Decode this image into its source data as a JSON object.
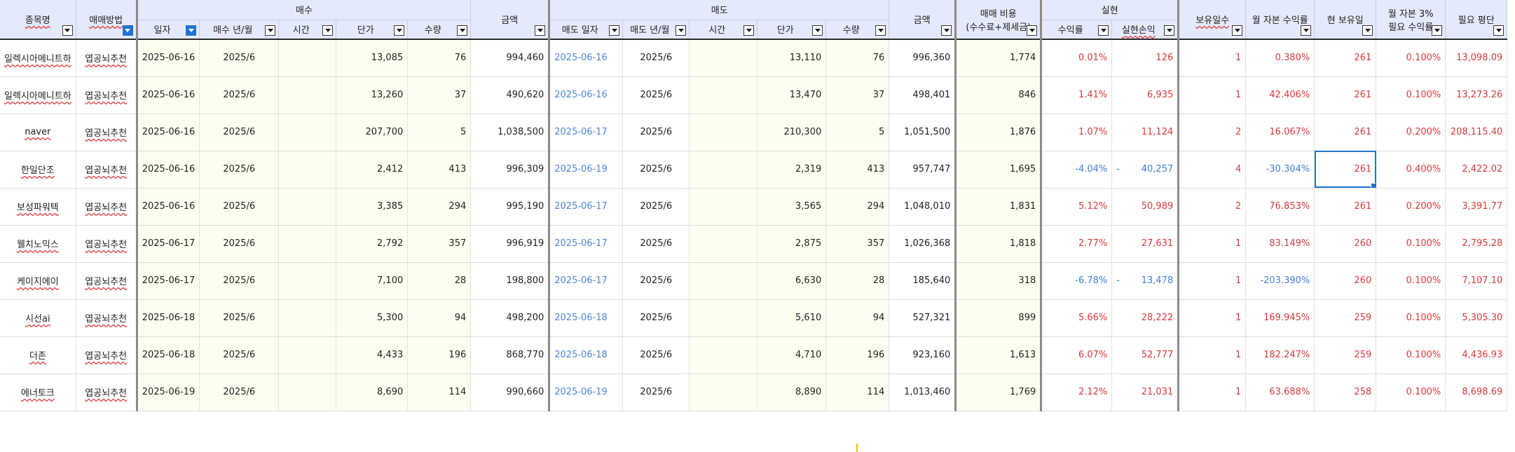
{
  "header": {
    "group_buy": "매수",
    "group_sell": "매도",
    "group_realized": "실현",
    "cols": {
      "stock_name": "종목명",
      "trade_method": "매매방법",
      "buy_date": "일자",
      "buy_ym": "매수 년/월",
      "buy_time": "시간",
      "buy_price": "단가",
      "buy_qty": "수량",
      "buy_amount": "금액",
      "sell_date": "매도 일자",
      "sell_ym": "매도 년/월",
      "sell_time": "시간",
      "sell_price": "단가",
      "sell_qty": "수량",
      "sell_amount": "금액",
      "cost_line1": "매매 비용",
      "cost_line2": "(수수료+제세금)",
      "return_rate": "수익률",
      "realized_pl": "실현손익",
      "holding_days": "보유일수",
      "monthly_return": "월 자본 수익률",
      "current_holding": "현 보유일",
      "req_line1": "월 자본 3%",
      "req_line2": "필요 수익률",
      "req_avg": "필요 평단"
    }
  },
  "rows": [
    {
      "name": "일렉시아메니트하",
      "method": "엽공뇌추천",
      "buy_date": "2025-06-16",
      "buy_ym": "2025/6",
      "buy_time": "",
      "buy_price": "13,085",
      "buy_qty": "76",
      "buy_amount": "994,460",
      "sell_date": "2025-06-16",
      "sell_ym": "2025/6",
      "sell_time": "",
      "sell_price": "13,110",
      "sell_qty": "76",
      "sell_amount": "996,360",
      "cost": "1,774",
      "rate": "0.01%",
      "pl_dash": "",
      "pl": "126",
      "days": "1",
      "monthly": "0.380%",
      "cur": "261",
      "req_rate": "0.100%",
      "req_avg": "13,098.09",
      "tone": "red"
    },
    {
      "name": "일렉시아메니트하",
      "method": "엽공뇌추천",
      "buy_date": "2025-06-16",
      "buy_ym": "2025/6",
      "buy_time": "",
      "buy_price": "13,260",
      "buy_qty": "37",
      "buy_amount": "490,620",
      "sell_date": "2025-06-16",
      "sell_ym": "2025/6",
      "sell_time": "",
      "sell_price": "13,470",
      "sell_qty": "37",
      "sell_amount": "498,401",
      "cost": "846",
      "rate": "1.41%",
      "pl_dash": "",
      "pl": "6,935",
      "days": "1",
      "monthly": "42.406%",
      "cur": "261",
      "req_rate": "0.100%",
      "req_avg": "13,273.26",
      "tone": "red"
    },
    {
      "name": "naver",
      "method": "엽공뇌추천",
      "buy_date": "2025-06-16",
      "buy_ym": "2025/6",
      "buy_time": "",
      "buy_price": "207,700",
      "buy_qty": "5",
      "buy_amount": "1,038,500",
      "sell_date": "2025-06-17",
      "sell_ym": "2025/6",
      "sell_time": "",
      "sell_price": "210,300",
      "sell_qty": "5",
      "sell_amount": "1,051,500",
      "cost": "1,876",
      "rate": "1.07%",
      "pl_dash": "",
      "pl": "11,124",
      "days": "2",
      "monthly": "16.067%",
      "cur": "261",
      "req_rate": "0.200%",
      "req_avg": "208,115.40",
      "tone": "red"
    },
    {
      "name": "한일단조",
      "method": "엽공뇌추천",
      "buy_date": "2025-06-16",
      "buy_ym": "2025/6",
      "buy_time": "",
      "buy_price": "2,412",
      "buy_qty": "413",
      "buy_amount": "996,309",
      "sell_date": "2025-06-19",
      "sell_ym": "2025/6",
      "sell_time": "",
      "sell_price": "2,319",
      "sell_qty": "413",
      "sell_amount": "957,747",
      "cost": "1,695",
      "rate": "-4.04%",
      "pl_dash": "-",
      "pl": "40,257",
      "days": "4",
      "monthly": "-30.304%",
      "cur": "261",
      "req_rate": "0.400%",
      "req_avg": "2,422.02",
      "tone": "blue"
    },
    {
      "name": "보성파워텍",
      "method": "엽공뇌추천",
      "buy_date": "2025-06-16",
      "buy_ym": "2025/6",
      "buy_time": "",
      "buy_price": "3,385",
      "buy_qty": "294",
      "buy_amount": "995,190",
      "sell_date": "2025-06-17",
      "sell_ym": "2025/6",
      "sell_time": "",
      "sell_price": "3,565",
      "sell_qty": "294",
      "sell_amount": "1,048,010",
      "cost": "1,831",
      "rate": "5.12%",
      "pl_dash": "",
      "pl": "50,989",
      "days": "2",
      "monthly": "76.853%",
      "cur": "261",
      "req_rate": "0.200%",
      "req_avg": "3,391.77",
      "tone": "red"
    },
    {
      "name": "웰치노믹스",
      "method": "엽공뇌추천",
      "buy_date": "2025-06-17",
      "buy_ym": "2025/6",
      "buy_time": "",
      "buy_price": "2,792",
      "buy_qty": "357",
      "buy_amount": "996,919",
      "sell_date": "2025-06-17",
      "sell_ym": "2025/6",
      "sell_time": "",
      "sell_price": "2,875",
      "sell_qty": "357",
      "sell_amount": "1,026,368",
      "cost": "1,818",
      "rate": "2.77%",
      "pl_dash": "",
      "pl": "27,631",
      "days": "1",
      "monthly": "83.149%",
      "cur": "260",
      "req_rate": "0.100%",
      "req_avg": "2,795.28",
      "tone": "red"
    },
    {
      "name": "케이지에이",
      "method": "엽공뇌추천",
      "buy_date": "2025-06-17",
      "buy_ym": "2025/6",
      "buy_time": "",
      "buy_price": "7,100",
      "buy_qty": "28",
      "buy_amount": "198,800",
      "sell_date": "2025-06-17",
      "sell_ym": "2025/6",
      "sell_time": "",
      "sell_price": "6,630",
      "sell_qty": "28",
      "sell_amount": "185,640",
      "cost": "318",
      "rate": "-6.78%",
      "pl_dash": "-",
      "pl": "13,478",
      "days": "1",
      "monthly": "-203.390%",
      "cur": "260",
      "req_rate": "0.100%",
      "req_avg": "7,107.10",
      "tone": "blue"
    },
    {
      "name": "시선ai",
      "method": "엽공뇌추천",
      "buy_date": "2025-06-18",
      "buy_ym": "2025/6",
      "buy_time": "",
      "buy_price": "5,300",
      "buy_qty": "94",
      "buy_amount": "498,200",
      "sell_date": "2025-06-18",
      "sell_ym": "2025/6",
      "sell_time": "",
      "sell_price": "5,610",
      "sell_qty": "94",
      "sell_amount": "527,321",
      "cost": "899",
      "rate": "5.66%",
      "pl_dash": "",
      "pl": "28,222",
      "days": "1",
      "monthly": "169.945%",
      "cur": "259",
      "req_rate": "0.100%",
      "req_avg": "5,305.30",
      "tone": "red"
    },
    {
      "name": "더존",
      "method": "엽공뇌추천",
      "buy_date": "2025-06-18",
      "buy_ym": "2025/6",
      "buy_time": "",
      "buy_price": "4,433",
      "buy_qty": "196",
      "buy_amount": "868,770",
      "sell_date": "2025-06-18",
      "sell_ym": "2025/6",
      "sell_time": "",
      "sell_price": "4,710",
      "sell_qty": "196",
      "sell_amount": "923,160",
      "cost": "1,613",
      "rate": "6.07%",
      "pl_dash": "",
      "pl": "52,777",
      "days": "1",
      "monthly": "182.247%",
      "cur": "259",
      "req_rate": "0.100%",
      "req_avg": "4,436.93",
      "tone": "red"
    },
    {
      "name": "에너토크",
      "method": "엽공뇌추천",
      "buy_date": "2025-06-19",
      "buy_ym": "2025/6",
      "buy_time": "",
      "buy_price": "8,690",
      "buy_qty": "114",
      "buy_amount": "990,660",
      "sell_date": "2025-06-19",
      "sell_ym": "2025/6",
      "sell_time": "",
      "sell_price": "8,890",
      "sell_qty": "114",
      "sell_amount": "1,013,460",
      "cost": "1,769",
      "rate": "2.12%",
      "pl_dash": "",
      "pl": "21,031",
      "days": "1",
      "monthly": "63.688%",
      "cur": "258",
      "req_rate": "0.100%",
      "req_avg": "8,698.69",
      "tone": "red"
    }
  ],
  "selected_cell": {
    "row": 3,
    "column": "cur"
  },
  "colors": {
    "header_bg": "#e4e9fb",
    "cell_yellow": "#fefef0",
    "positive": "#d9393b",
    "negative": "#3f7fd6",
    "selection": "#1f74d0"
  }
}
